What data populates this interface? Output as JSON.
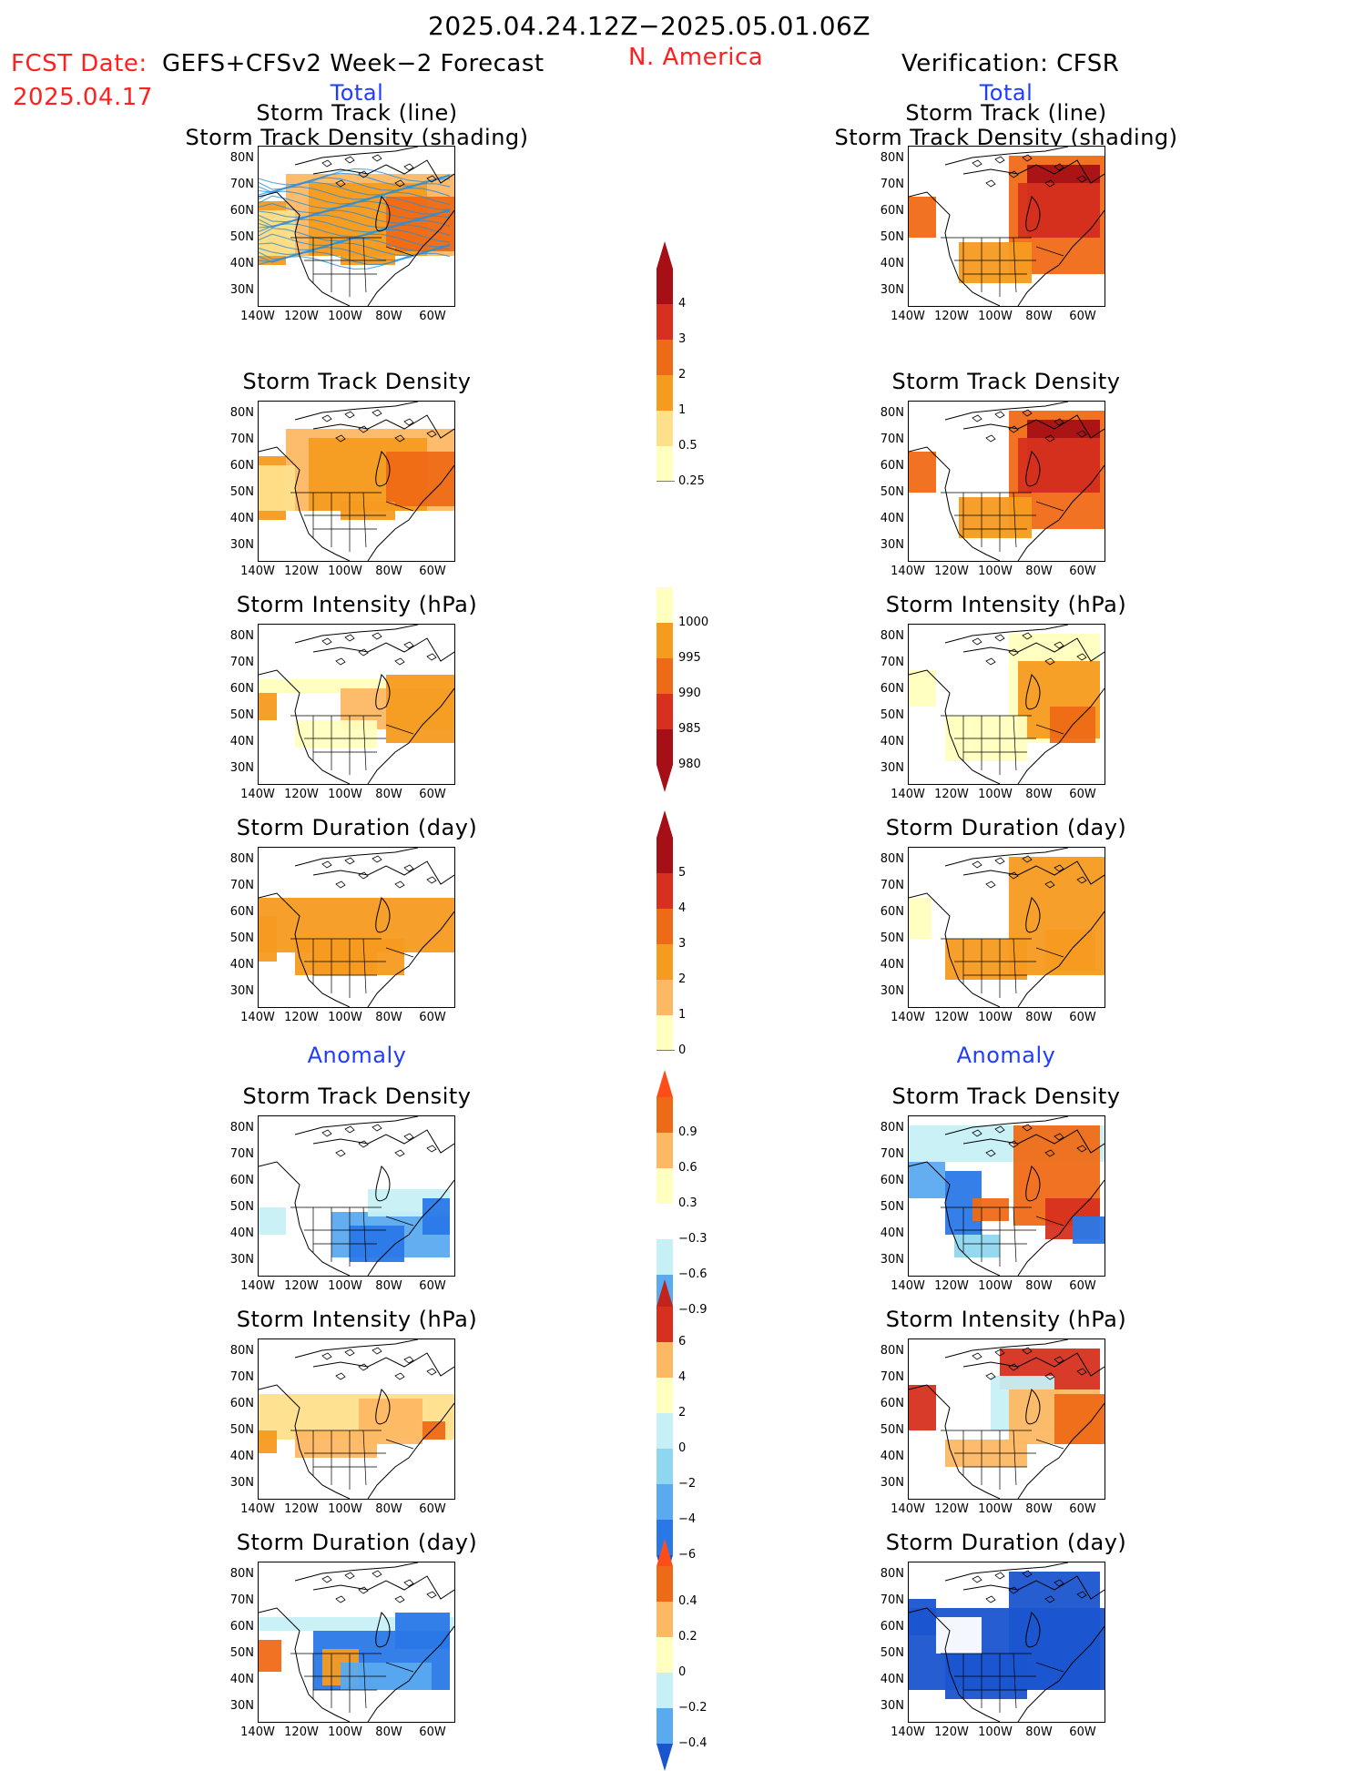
{
  "header": {
    "date_range": "2025.04.24.12Z−2025.05.01.06Z",
    "fcst_label": "FCST Date:",
    "fcst_model": "GEFS+CFSv2 Week−2 Forecast",
    "fcst_date": "2025.04.17",
    "region": "N. America",
    "verification": "Verification: CFSR"
  },
  "sections": {
    "total": "Total",
    "anomaly": "Anomaly"
  },
  "panel_titles": {
    "track_line": "Storm Track (line)",
    "track_density_shading": "Storm Track Density (shading)",
    "track_density": "Storm Track Density",
    "intensity": "Storm Intensity (hPa)",
    "duration": "Storm Duration (day)"
  },
  "axes": {
    "lat_ticks": [
      "80N",
      "70N",
      "60N",
      "50N",
      "40N",
      "30N"
    ],
    "lon_ticks": [
      "140W",
      "120W",
      "100W",
      "80W",
      "60W"
    ]
  },
  "colorbars": {
    "density_total": {
      "labels": [
        "4",
        "3",
        "2",
        "1",
        "0.5",
        "0.25"
      ]
    },
    "intensity_total": {
      "labels": [
        "1000",
        "995",
        "990",
        "985",
        "980"
      ]
    },
    "duration_total": {
      "labels": [
        "5",
        "4",
        "3",
        "2",
        "1",
        "0"
      ]
    },
    "density_anomaly": {
      "labels": [
        "0.9",
        "0.6",
        "0.3",
        "−0.3",
        "−0.6",
        "−0.9"
      ]
    },
    "intensity_anomaly": {
      "labels": [
        "6",
        "4",
        "2",
        "0",
        "−2",
        "−4",
        "−6"
      ]
    },
    "duration_anomaly": {
      "labels": [
        "0.4",
        "0.2",
        "0",
        "−0.2",
        "−0.4"
      ]
    }
  },
  "colors": {
    "text_red": "#ff2020",
    "text_blue": "#1f3cff",
    "warm": [
      "#ffffbf",
      "#fee08b",
      "#fdb863",
      "#f59b20",
      "#ef6a16",
      "#d7301f",
      "#a50f15"
    ],
    "cool": [
      "#c6f0f5",
      "#8fd7f0",
      "#5aaaf0",
      "#2a78e8",
      "#1a55d0"
    ],
    "track_line": "#2a8fd8"
  }
}
